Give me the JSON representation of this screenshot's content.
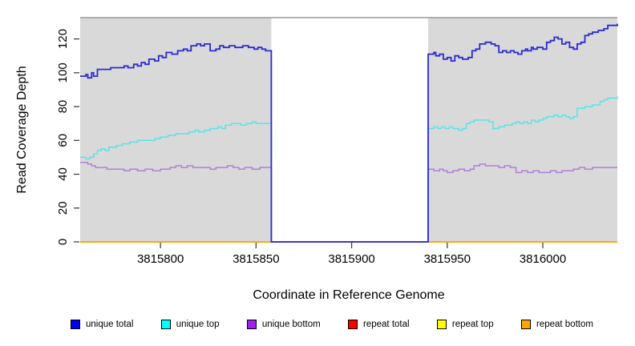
{
  "chart_data": {
    "type": "line",
    "subtype": "step",
    "title": "",
    "xlabel": "Coordinate in Reference Genome",
    "ylabel": "Read Coverage Depth",
    "xlim": [
      3815758,
      3816039
    ],
    "ylim": [
      0,
      132.6
    ],
    "xticks": [
      3815800,
      3815850,
      3815900,
      3815950,
      3816000
    ],
    "yticks": [
      0,
      20,
      40,
      60,
      80,
      100,
      120
    ],
    "plot_background": "#d9d9d9",
    "top_border_color": "#999999",
    "tick_color": "#404040",
    "gap_region": {
      "start": 3815858,
      "end": 3815940,
      "color": "#ffffff"
    },
    "legend": [
      {
        "label": "unique total",
        "color": "#0000f0"
      },
      {
        "label": "unique top",
        "color": "#00ffff"
      },
      {
        "label": "unique bottom",
        "color": "#a020f0"
      },
      {
        "label": "repeat total",
        "color": "#ff0000"
      },
      {
        "label": "repeat top",
        "color": "#ffff00"
      },
      {
        "label": "repeat bottom",
        "color": "#ffa500"
      }
    ],
    "series": [
      {
        "name": "repeat total",
        "color": "#ff0000",
        "width": 1.4,
        "points": [
          [
            3815758,
            0
          ],
          [
            3816039,
            0
          ]
        ]
      },
      {
        "name": "repeat top",
        "color": "#ffff00",
        "width": 1.4,
        "points": [
          [
            3815758,
            0
          ],
          [
            3816039,
            0
          ]
        ]
      },
      {
        "name": "repeat bottom",
        "color": "#ffa500",
        "width": 1.8,
        "points": [
          [
            3815758,
            0
          ],
          [
            3816039,
            0
          ]
        ]
      },
      {
        "name": "unique top",
        "color": "#5be3e8",
        "width": 1.5,
        "points": [
          [
            3815758,
            50
          ],
          [
            3815761,
            49
          ],
          [
            3815763,
            50
          ],
          [
            3815765,
            52
          ],
          [
            3815767,
            54
          ],
          [
            3815769,
            55
          ],
          [
            3815771,
            54
          ],
          [
            3815773,
            56
          ],
          [
            3815777,
            57
          ],
          [
            3815780,
            58
          ],
          [
            3815784,
            59
          ],
          [
            3815788,
            60
          ],
          [
            3815794,
            60
          ],
          [
            3815797,
            61
          ],
          [
            3815800,
            62
          ],
          [
            3815804,
            63
          ],
          [
            3815808,
            64
          ],
          [
            3815812,
            64
          ],
          [
            3815815,
            65
          ],
          [
            3815818,
            66
          ],
          [
            3815820,
            65
          ],
          [
            3815823,
            66
          ],
          [
            3815826,
            67
          ],
          [
            3815830,
            68
          ],
          [
            3815832,
            67
          ],
          [
            3815834,
            69
          ],
          [
            3815837,
            70
          ],
          [
            3815840,
            70
          ],
          [
            3815842,
            69
          ],
          [
            3815845,
            70
          ],
          [
            3815848,
            71
          ],
          [
            3815850,
            70
          ],
          [
            3815853,
            70
          ],
          [
            3815858,
            70
          ],
          [
            3815858,
            0
          ],
          [
            3815940,
            0
          ],
          [
            3815940,
            67
          ],
          [
            3815943,
            68
          ],
          [
            3815945,
            67
          ],
          [
            3815947,
            68
          ],
          [
            3815949,
            67
          ],
          [
            3815951,
            68
          ],
          [
            3815953,
            67
          ],
          [
            3815956,
            66
          ],
          [
            3815958,
            67
          ],
          [
            3815960,
            70
          ],
          [
            3815962,
            71
          ],
          [
            3815964,
            72
          ],
          [
            3815968,
            72
          ],
          [
            3815972,
            71
          ],
          [
            3815974,
            67
          ],
          [
            3815977,
            68
          ],
          [
            3815980,
            69
          ],
          [
            3815984,
            70
          ],
          [
            3815986,
            71
          ],
          [
            3815988,
            70
          ],
          [
            3815990,
            71
          ],
          [
            3815992,
            70
          ],
          [
            3815994,
            72
          ],
          [
            3815996,
            71
          ],
          [
            3815998,
            72
          ],
          [
            3816000,
            73
          ],
          [
            3816002,
            74
          ],
          [
            3816006,
            75
          ],
          [
            3816008,
            74
          ],
          [
            3816010,
            75
          ],
          [
            3816012,
            74
          ],
          [
            3816014,
            73
          ],
          [
            3816016,
            74
          ],
          [
            3816018,
            79
          ],
          [
            3816022,
            80
          ],
          [
            3816026,
            81
          ],
          [
            3816030,
            83
          ],
          [
            3816032,
            84
          ],
          [
            3816034,
            85
          ],
          [
            3816039,
            86
          ]
        ]
      },
      {
        "name": "unique bottom",
        "color": "#b27edb",
        "width": 1.5,
        "points": [
          [
            3815758,
            47
          ],
          [
            3815762,
            46
          ],
          [
            3815764,
            45
          ],
          [
            3815766,
            44
          ],
          [
            3815770,
            44
          ],
          [
            3815772,
            43
          ],
          [
            3815778,
            43
          ],
          [
            3815781,
            42
          ],
          [
            3815784,
            43
          ],
          [
            3815788,
            42
          ],
          [
            3815792,
            43
          ],
          [
            3815796,
            42
          ],
          [
            3815800,
            43
          ],
          [
            3815805,
            44
          ],
          [
            3815808,
            45
          ],
          [
            3815811,
            44
          ],
          [
            3815814,
            45
          ],
          [
            3815817,
            44
          ],
          [
            3815823,
            44
          ],
          [
            3815826,
            43
          ],
          [
            3815829,
            44
          ],
          [
            3815832,
            44
          ],
          [
            3815835,
            45
          ],
          [
            3815838,
            44
          ],
          [
            3815841,
            43
          ],
          [
            3815844,
            44
          ],
          [
            3815848,
            43
          ],
          [
            3815852,
            44
          ],
          [
            3815858,
            44
          ],
          [
            3815858,
            0
          ],
          [
            3815940,
            0
          ],
          [
            3815940,
            43
          ],
          [
            3815943,
            42
          ],
          [
            3815946,
            43
          ],
          [
            3815948,
            42
          ],
          [
            3815950,
            41
          ],
          [
            3815953,
            42
          ],
          [
            3815956,
            43
          ],
          [
            3815959,
            42
          ],
          [
            3815962,
            43
          ],
          [
            3815964,
            45
          ],
          [
            3815967,
            46
          ],
          [
            3815970,
            45
          ],
          [
            3815974,
            45
          ],
          [
            3815977,
            44
          ],
          [
            3815980,
            45
          ],
          [
            3815983,
            44
          ],
          [
            3815986,
            41
          ],
          [
            3815989,
            42
          ],
          [
            3815992,
            41
          ],
          [
            3815995,
            42
          ],
          [
            3815998,
            41
          ],
          [
            3816001,
            41
          ],
          [
            3816004,
            42
          ],
          [
            3816007,
            41
          ],
          [
            3816010,
            42
          ],
          [
            3816013,
            42
          ],
          [
            3816016,
            43
          ],
          [
            3816019,
            44
          ],
          [
            3816022,
            43
          ],
          [
            3816026,
            44
          ],
          [
            3816030,
            44
          ],
          [
            3816034,
            44
          ],
          [
            3816039,
            44
          ]
        ]
      },
      {
        "name": "unique total",
        "color": "#2a2ad2",
        "width": 1.8,
        "points": [
          [
            3815758,
            98
          ],
          [
            3815761,
            99
          ],
          [
            3815762,
            97
          ],
          [
            3815764,
            100
          ],
          [
            3815765,
            98
          ],
          [
            3815767,
            102
          ],
          [
            3815772,
            102
          ],
          [
            3815774,
            103
          ],
          [
            3815779,
            103
          ],
          [
            3815781,
            104
          ],
          [
            3815783,
            103
          ],
          [
            3815786,
            105
          ],
          [
            3815788,
            104
          ],
          [
            3815790,
            106
          ],
          [
            3815792,
            105
          ],
          [
            3815794,
            108
          ],
          [
            3815797,
            107
          ],
          [
            3815799,
            110
          ],
          [
            3815801,
            109
          ],
          [
            3815803,
            112
          ],
          [
            3815806,
            111
          ],
          [
            3815809,
            113
          ],
          [
            3815812,
            114
          ],
          [
            3815814,
            113
          ],
          [
            3815816,
            116
          ],
          [
            3815819,
            117
          ],
          [
            3815821,
            116
          ],
          [
            3815823,
            117
          ],
          [
            3815826,
            113
          ],
          [
            3815829,
            114
          ],
          [
            3815831,
            116
          ],
          [
            3815833,
            115
          ],
          [
            3815836,
            116
          ],
          [
            3815839,
            115
          ],
          [
            3815843,
            116
          ],
          [
            3815846,
            115
          ],
          [
            3815849,
            114
          ],
          [
            3815851,
            115
          ],
          [
            3815853,
            114
          ],
          [
            3815855,
            113
          ],
          [
            3815858,
            112
          ],
          [
            3815858,
            0
          ],
          [
            3815940,
            0
          ],
          [
            3815940,
            111
          ],
          [
            3815943,
            112
          ],
          [
            3815944,
            110
          ],
          [
            3815946,
            111
          ],
          [
            3815948,
            108
          ],
          [
            3815950,
            109
          ],
          [
            3815952,
            107
          ],
          [
            3815954,
            110
          ],
          [
            3815956,
            109
          ],
          [
            3815958,
            108
          ],
          [
            3815961,
            109
          ],
          [
            3815963,
            113
          ],
          [
            3815965,
            114
          ],
          [
            3815967,
            117
          ],
          [
            3815970,
            118
          ],
          [
            3815973,
            117
          ],
          [
            3815975,
            116
          ],
          [
            3815977,
            112
          ],
          [
            3815979,
            113
          ],
          [
            3815981,
            112
          ],
          [
            3815983,
            113
          ],
          [
            3815985,
            112
          ],
          [
            3815987,
            111
          ],
          [
            3815989,
            113
          ],
          [
            3815991,
            114
          ],
          [
            3815992,
            113
          ],
          [
            3815994,
            115
          ],
          [
            3815995,
            114
          ],
          [
            3815997,
            115
          ],
          [
            3816000,
            114
          ],
          [
            3816002,
            118
          ],
          [
            3816004,
            119
          ],
          [
            3816006,
            121
          ],
          [
            3816008,
            120
          ],
          [
            3816010,
            117
          ],
          [
            3816012,
            118
          ],
          [
            3816014,
            115
          ],
          [
            3816016,
            114
          ],
          [
            3816018,
            117
          ],
          [
            3816020,
            118
          ],
          [
            3816022,
            122
          ],
          [
            3816024,
            123
          ],
          [
            3816026,
            124
          ],
          [
            3816029,
            125
          ],
          [
            3816032,
            126
          ],
          [
            3816034,
            128
          ],
          [
            3816039,
            129
          ]
        ]
      }
    ]
  }
}
